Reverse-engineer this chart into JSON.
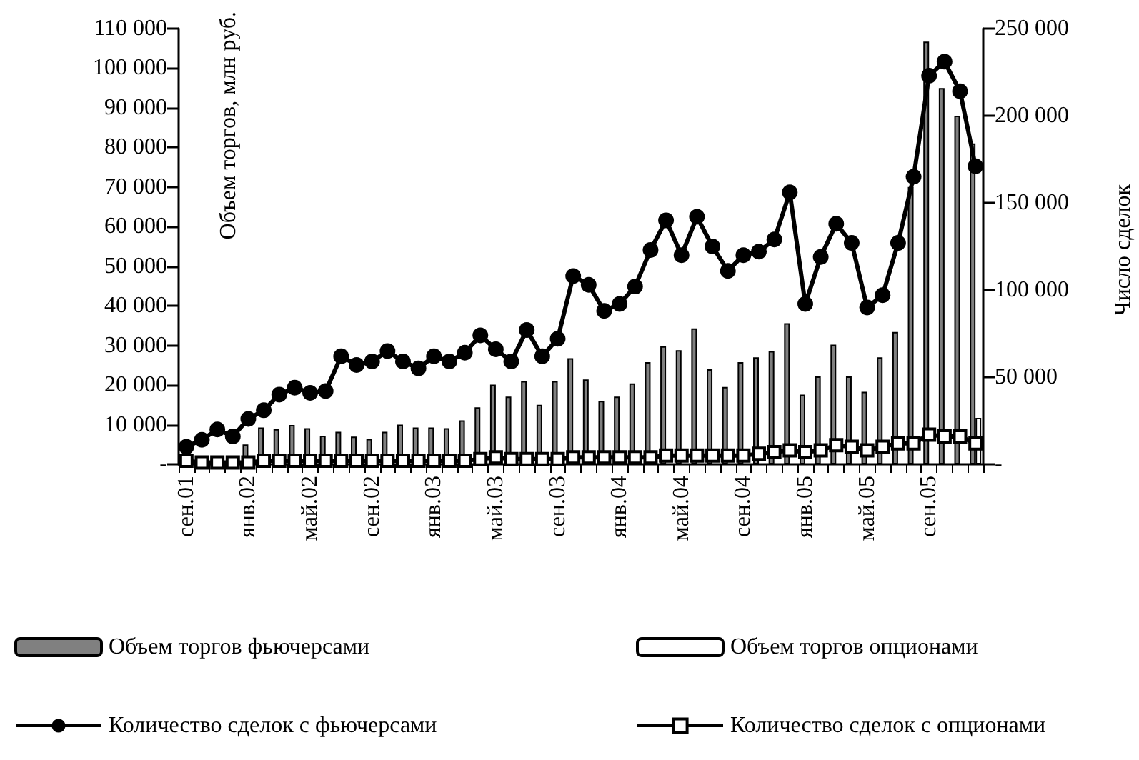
{
  "chart_data": {
    "type": "bar",
    "ylabel": "Объем торгов, млн руб.",
    "y2label": "Число сделок",
    "categories": [
      "сен.01",
      null,
      null,
      null,
      "янв.02",
      null,
      null,
      null,
      "май.02",
      null,
      null,
      null,
      "сен.02",
      null,
      null,
      null,
      "янв.03",
      null,
      null,
      null,
      "май.03",
      null,
      null,
      null,
      "сен.03",
      null,
      null,
      null,
      "янв.04",
      null,
      null,
      null,
      "май.04",
      null,
      null,
      null,
      "сен.04",
      null,
      null,
      null,
      "янв.05",
      null,
      null,
      null,
      "май.05",
      null,
      null,
      null,
      "сен.05",
      null,
      null,
      null
    ],
    "series": [
      {
        "name": "Объем торгов фьючерсами",
        "color": "#808080",
        "values": [
          null,
          null,
          null,
          null,
          5000,
          9300,
          8900,
          9900,
          9100,
          7200,
          8200,
          7000,
          6400,
          8200,
          10000,
          9300,
          9300,
          9100,
          11100,
          14400,
          20100,
          17100,
          21000,
          15000,
          21000,
          26800,
          21400,
          16000,
          17100,
          20400,
          25800,
          29800,
          28800,
          34300,
          24000,
          19500,
          25800,
          27000,
          28600,
          35600,
          17600,
          22200,
          30200,
          22200,
          18300,
          27000,
          33400,
          70000,
          106700,
          95000,
          88000,
          81000
        ]
      },
      {
        "name": "Объем торгов опционами",
        "color": "#ffffff",
        "values": [
          null,
          null,
          null,
          null,
          null,
          null,
          null,
          null,
          null,
          null,
          null,
          null,
          null,
          null,
          null,
          null,
          null,
          null,
          null,
          null,
          null,
          null,
          null,
          null,
          null,
          null,
          null,
          null,
          null,
          null,
          null,
          null,
          null,
          null,
          null,
          null,
          null,
          null,
          null,
          null,
          null,
          null,
          null,
          null,
          null,
          null,
          null,
          null,
          null,
          null,
          null,
          11700
        ]
      },
      {
        "name": "Количество сделок с фьючерсами",
        "type": "line",
        "axis": "y2",
        "marker": "circle",
        "color": "#000000",
        "values": [
          10000,
          14000,
          20000,
          16000,
          26000,
          31000,
          40000,
          44000,
          41000,
          42000,
          62000,
          57000,
          59000,
          65000,
          59000,
          55000,
          62000,
          59000,
          64000,
          74000,
          66000,
          59000,
          77000,
          62000,
          72000,
          108000,
          103000,
          88000,
          92000,
          102000,
          123000,
          140000,
          120000,
          142000,
          125000,
          111000,
          120000,
          122000,
          129000,
          156000,
          92000,
          119000,
          138000,
          127000,
          90000,
          97000,
          127000,
          165000,
          223000,
          231000,
          214000,
          171000
        ]
      },
      {
        "name": "Количество сделок с опционами",
        "type": "line",
        "axis": "y2",
        "marker": "square",
        "color": "#000000",
        "values": [
          2000,
          1000,
          1000,
          1000,
          1000,
          2000,
          2000,
          2000,
          2000,
          2000,
          2000,
          2000,
          2000,
          2000,
          2000,
          2000,
          2000,
          2000,
          2000,
          3000,
          4000,
          3000,
          3000,
          3000,
          3000,
          4000,
          4000,
          4000,
          4000,
          4000,
          4000,
          5000,
          5000,
          5000,
          5000,
          5000,
          5000,
          6000,
          7000,
          8000,
          7000,
          8000,
          11000,
          10000,
          8000,
          10000,
          12000,
          12000,
          17000,
          16000,
          16000,
          12000
        ]
      }
    ],
    "ylim": [
      0,
      110000
    ],
    "yticks": [
      {
        "value": 0,
        "label": "-"
      },
      {
        "value": 10000,
        "label": "10 000"
      },
      {
        "value": 20000,
        "label": "20 000"
      },
      {
        "value": 30000,
        "label": "30 000"
      },
      {
        "value": 40000,
        "label": "40 000"
      },
      {
        "value": 50000,
        "label": "50 000"
      },
      {
        "value": 60000,
        "label": "60 000"
      },
      {
        "value": 70000,
        "label": "70 000"
      },
      {
        "value": 80000,
        "label": "80 000"
      },
      {
        "value": 90000,
        "label": "90 000"
      },
      {
        "value": 100000,
        "label": "100 000"
      },
      {
        "value": 110000,
        "label": "110 000"
      }
    ],
    "y2lim": [
      0,
      250000
    ],
    "y2ticks": [
      {
        "value": 0,
        "label": "-"
      },
      {
        "value": 50000,
        "label": "50 000"
      },
      {
        "value": 100000,
        "label": "100 000"
      },
      {
        "value": 150000,
        "label": "150 000"
      },
      {
        "value": 200000,
        "label": "200 000"
      },
      {
        "value": 250000,
        "label": "250 000"
      }
    ],
    "grid": false,
    "legend": "bottom"
  }
}
